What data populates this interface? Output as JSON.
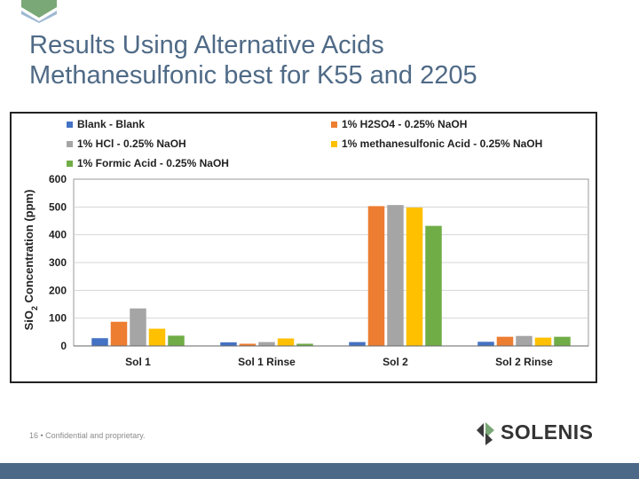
{
  "slide": {
    "title_lines": [
      "Results Using Alternative Acids",
      "Methanesulfonic best for K55 and 2205"
    ],
    "footer": "16 • Confidential and proprietary.",
    "brand": "SOLENIS",
    "colors": {
      "title": "#4f6a86",
      "bar": "#4c6a87",
      "logo_green": "#7aa876"
    }
  },
  "chart_data": {
    "type": "bar",
    "categories": [
      "Sol 1",
      "Sol 1 Rinse",
      "Sol 2",
      "Sol 2 Rinse"
    ],
    "ylabel": "SiO2 Concentration (ppm)",
    "ylim": [
      0,
      600
    ],
    "yticks": [
      0,
      100,
      200,
      300,
      400,
      500,
      600
    ],
    "grid": "horizontal",
    "legend_position": "top",
    "series": [
      {
        "name": "Blank - Blank",
        "color": "#4472c4",
        "values": [
          28,
          13,
          14,
          15
        ]
      },
      {
        "name": "1% H2SO4 - 0.25% NaOH",
        "color": "#ed7d31",
        "values": [
          87,
          8,
          503,
          33
        ]
      },
      {
        "name": "1% HCl - 0.25% NaOH",
        "color": "#a5a5a5",
        "values": [
          135,
          14,
          507,
          36
        ]
      },
      {
        "name": "1% methanesulfonic Acid - 0.25% NaOH",
        "color": "#ffc000",
        "values": [
          62,
          27,
          498,
          30
        ]
      },
      {
        "name": "1% Formic Acid - 0.25% NaOH",
        "color": "#70ad47",
        "values": [
          37,
          8,
          432,
          33
        ]
      }
    ]
  }
}
